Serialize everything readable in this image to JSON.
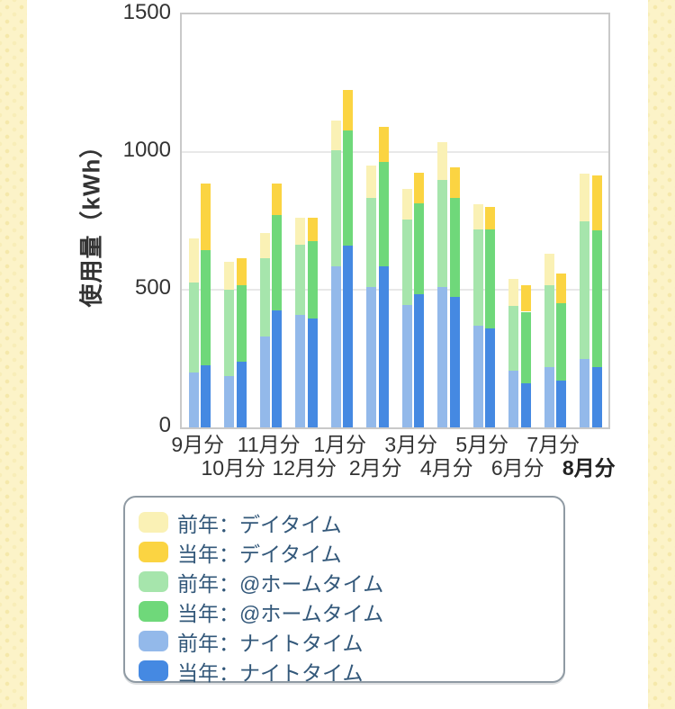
{
  "page": {
    "background_color": "#FFFFFF",
    "side_strip_color": "#FCF3C8"
  },
  "chart_data": {
    "type": "bar",
    "stacked": true,
    "grouped": true,
    "grid": "horizontal",
    "ylabel": "使用量（kWh）",
    "xlabel": "",
    "title": "",
    "ylim": [
      0,
      1500
    ],
    "yticks": [
      0,
      500,
      1000,
      1500
    ],
    "categories": [
      "9月分",
      "10月分",
      "11月分",
      "12月分",
      "1月分",
      "2月分",
      "3月分",
      "4月分",
      "5月分",
      "6月分",
      "7月分",
      "8月分"
    ],
    "highlighted_category": "8月分",
    "category_label_rows": [
      1,
      2,
      1,
      2,
      1,
      2,
      1,
      2,
      1,
      2,
      1,
      2
    ],
    "series": [
      {
        "key": "prev_night",
        "name": "前年：ナイトタイム",
        "group": "prev",
        "color": "#93B9EA",
        "values": [
          200,
          185,
          330,
          410,
          585,
          510,
          445,
          510,
          370,
          205,
          220,
          250
        ]
      },
      {
        "key": "prev_home",
        "name": "前年：@ホームタイム",
        "group": "prev",
        "color": "#A6E5AC",
        "values": [
          325,
          315,
          285,
          255,
          420,
          325,
          310,
          390,
          350,
          235,
          295,
          500
        ]
      },
      {
        "key": "prev_day",
        "name": "前年：デイタイム",
        "group": "prev",
        "color": "#FAF1B5",
        "values": [
          160,
          100,
          90,
          95,
          110,
          115,
          110,
          135,
          90,
          100,
          115,
          170
        ]
      },
      {
        "key": "curr_night",
        "name": "当年：ナイトタイム",
        "group": "curr",
        "color": "#4589E2",
        "values": [
          225,
          240,
          425,
          395,
          660,
          585,
          485,
          475,
          360,
          160,
          170,
          220
        ]
      },
      {
        "key": "curr_home",
        "name": "当年：@ホームタイム",
        "group": "curr",
        "color": "#6FD87A",
        "values": [
          420,
          275,
          345,
          280,
          420,
          380,
          330,
          360,
          360,
          260,
          280,
          495
        ]
      },
      {
        "key": "curr_day",
        "name": "当年：デイタイム",
        "group": "curr",
        "color": "#FBD442",
        "values": [
          240,
          100,
          115,
          85,
          145,
          125,
          110,
          110,
          80,
          95,
          110,
          200
        ]
      }
    ],
    "legend_position": "bottom",
    "legend": [
      {
        "key": "prev_day",
        "label": "前年：デイタイム",
        "color": "#FAF1B5"
      },
      {
        "key": "curr_day",
        "label": "当年：デイタイム",
        "color": "#FBD442"
      },
      {
        "key": "prev_home",
        "label": "前年：@ホームタイム",
        "color": "#A6E5AC"
      },
      {
        "key": "curr_home",
        "label": "当年：@ホームタイム",
        "color": "#6FD87A"
      },
      {
        "key": "prev_night",
        "label": "前年：ナイトタイム",
        "color": "#93B9EA"
      },
      {
        "key": "curr_night",
        "label": "当年：ナイトタイム",
        "color": "#4589E2"
      }
    ],
    "colors": {
      "grid": "#E8E8E8",
      "plot_border": "#C9C9C9",
      "axis_text": "#333333",
      "legend_text": "#33587A",
      "legend_border": "#8F9AA3"
    }
  }
}
